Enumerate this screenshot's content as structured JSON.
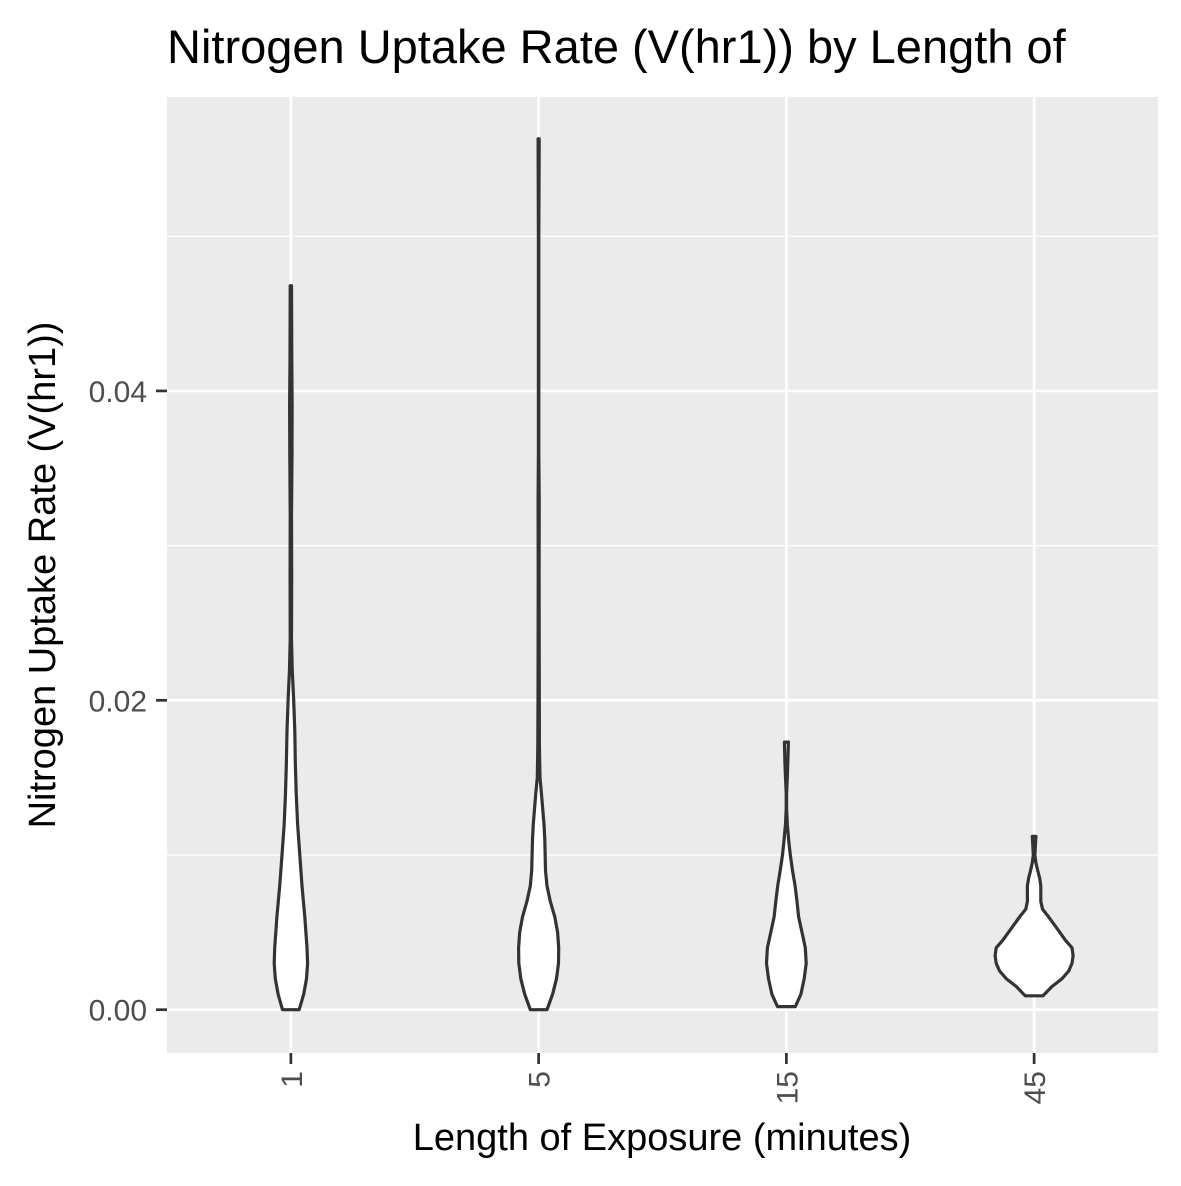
{
  "chart_data": {
    "type": "violin",
    "title": "Nitrogen Uptake Rate (V(hr1)) by Length of",
    "xlabel": "Length of Exposure (minutes)",
    "ylabel": "Nitrogen Uptake Rate (V(hr1))",
    "categories": [
      "1",
      "5",
      "15",
      "45"
    ],
    "ylim": [
      -0.0028,
      0.059
    ],
    "y_ticks": [
      0.0,
      0.02,
      0.04
    ],
    "y_tick_labels": [
      "0.00",
      "0.02",
      "0.04"
    ],
    "grid": true,
    "legend": "none",
    "colors": {
      "panel_background": "#ebebeb",
      "grid": "#ffffff",
      "violin_fill": "#ffffff",
      "violin_outline": "#333333",
      "axis_text": "#4d4d4d",
      "title_text": "#000000"
    },
    "violins": [
      {
        "category": "1",
        "min": 0.0,
        "max": 0.0468,
        "profile": [
          [
            0.0,
            0.075
          ],
          [
            0.001,
            0.115
          ],
          [
            0.002,
            0.14
          ],
          [
            0.003,
            0.15
          ],
          [
            0.004,
            0.145
          ],
          [
            0.006,
            0.125
          ],
          [
            0.008,
            0.1
          ],
          [
            0.01,
            0.08
          ],
          [
            0.012,
            0.06
          ],
          [
            0.014,
            0.048
          ],
          [
            0.016,
            0.04
          ],
          [
            0.018,
            0.035
          ],
          [
            0.02,
            0.025
          ],
          [
            0.022,
            0.012
          ],
          [
            0.024,
            0.006
          ],
          [
            0.028,
            0.007
          ],
          [
            0.032,
            0.006
          ],
          [
            0.036,
            0.01
          ],
          [
            0.039,
            0.011
          ],
          [
            0.042,
            0.008
          ],
          [
            0.0468,
            0.006
          ]
        ]
      },
      {
        "category": "5",
        "min": 0.0,
        "max": 0.0563,
        "profile": [
          [
            0.0,
            0.075
          ],
          [
            0.001,
            0.125
          ],
          [
            0.002,
            0.16
          ],
          [
            0.003,
            0.178
          ],
          [
            0.004,
            0.18
          ],
          [
            0.005,
            0.17
          ],
          [
            0.006,
            0.145
          ],
          [
            0.007,
            0.105
          ],
          [
            0.008,
            0.075
          ],
          [
            0.009,
            0.062
          ],
          [
            0.011,
            0.055
          ],
          [
            0.012,
            0.048
          ],
          [
            0.014,
            0.025
          ],
          [
            0.015,
            0.012
          ],
          [
            0.017,
            0.007
          ],
          [
            0.02,
            0.006
          ],
          [
            0.023,
            0.005
          ],
          [
            0.028,
            0.004
          ],
          [
            0.033,
            0.005
          ],
          [
            0.036,
            0.002
          ],
          [
            0.042,
            0.002
          ],
          [
            0.05,
            0.002
          ],
          [
            0.0563,
            0.005
          ]
        ]
      },
      {
        "category": "15",
        "min": 0.0002,
        "max": 0.0173,
        "profile": [
          [
            0.0002,
            0.08
          ],
          [
            0.001,
            0.13
          ],
          [
            0.002,
            0.16
          ],
          [
            0.003,
            0.178
          ],
          [
            0.004,
            0.17
          ],
          [
            0.005,
            0.14
          ],
          [
            0.006,
            0.11
          ],
          [
            0.007,
            0.095
          ],
          [
            0.008,
            0.078
          ],
          [
            0.009,
            0.055
          ],
          [
            0.01,
            0.035
          ],
          [
            0.011,
            0.02
          ],
          [
            0.012,
            0.008
          ],
          [
            0.013,
            0.002
          ],
          [
            0.014,
            0.002
          ],
          [
            0.015,
            0.008
          ],
          [
            0.016,
            0.013
          ],
          [
            0.0173,
            0.018
          ]
        ]
      },
      {
        "category": "45",
        "min": 0.0009,
        "max": 0.0112,
        "profile": [
          [
            0.0009,
            0.08
          ],
          [
            0.0015,
            0.16
          ],
          [
            0.002,
            0.25
          ],
          [
            0.0025,
            0.31
          ],
          [
            0.003,
            0.34
          ],
          [
            0.0035,
            0.35
          ],
          [
            0.004,
            0.34
          ],
          [
            0.0045,
            0.28
          ],
          [
            0.005,
            0.23
          ],
          [
            0.0055,
            0.18
          ],
          [
            0.006,
            0.13
          ],
          [
            0.0065,
            0.075
          ],
          [
            0.007,
            0.06
          ],
          [
            0.008,
            0.06
          ],
          [
            0.0085,
            0.05
          ],
          [
            0.009,
            0.032
          ],
          [
            0.0095,
            0.016
          ],
          [
            0.01,
            0.007
          ],
          [
            0.0112,
            0.016
          ]
        ]
      }
    ]
  }
}
